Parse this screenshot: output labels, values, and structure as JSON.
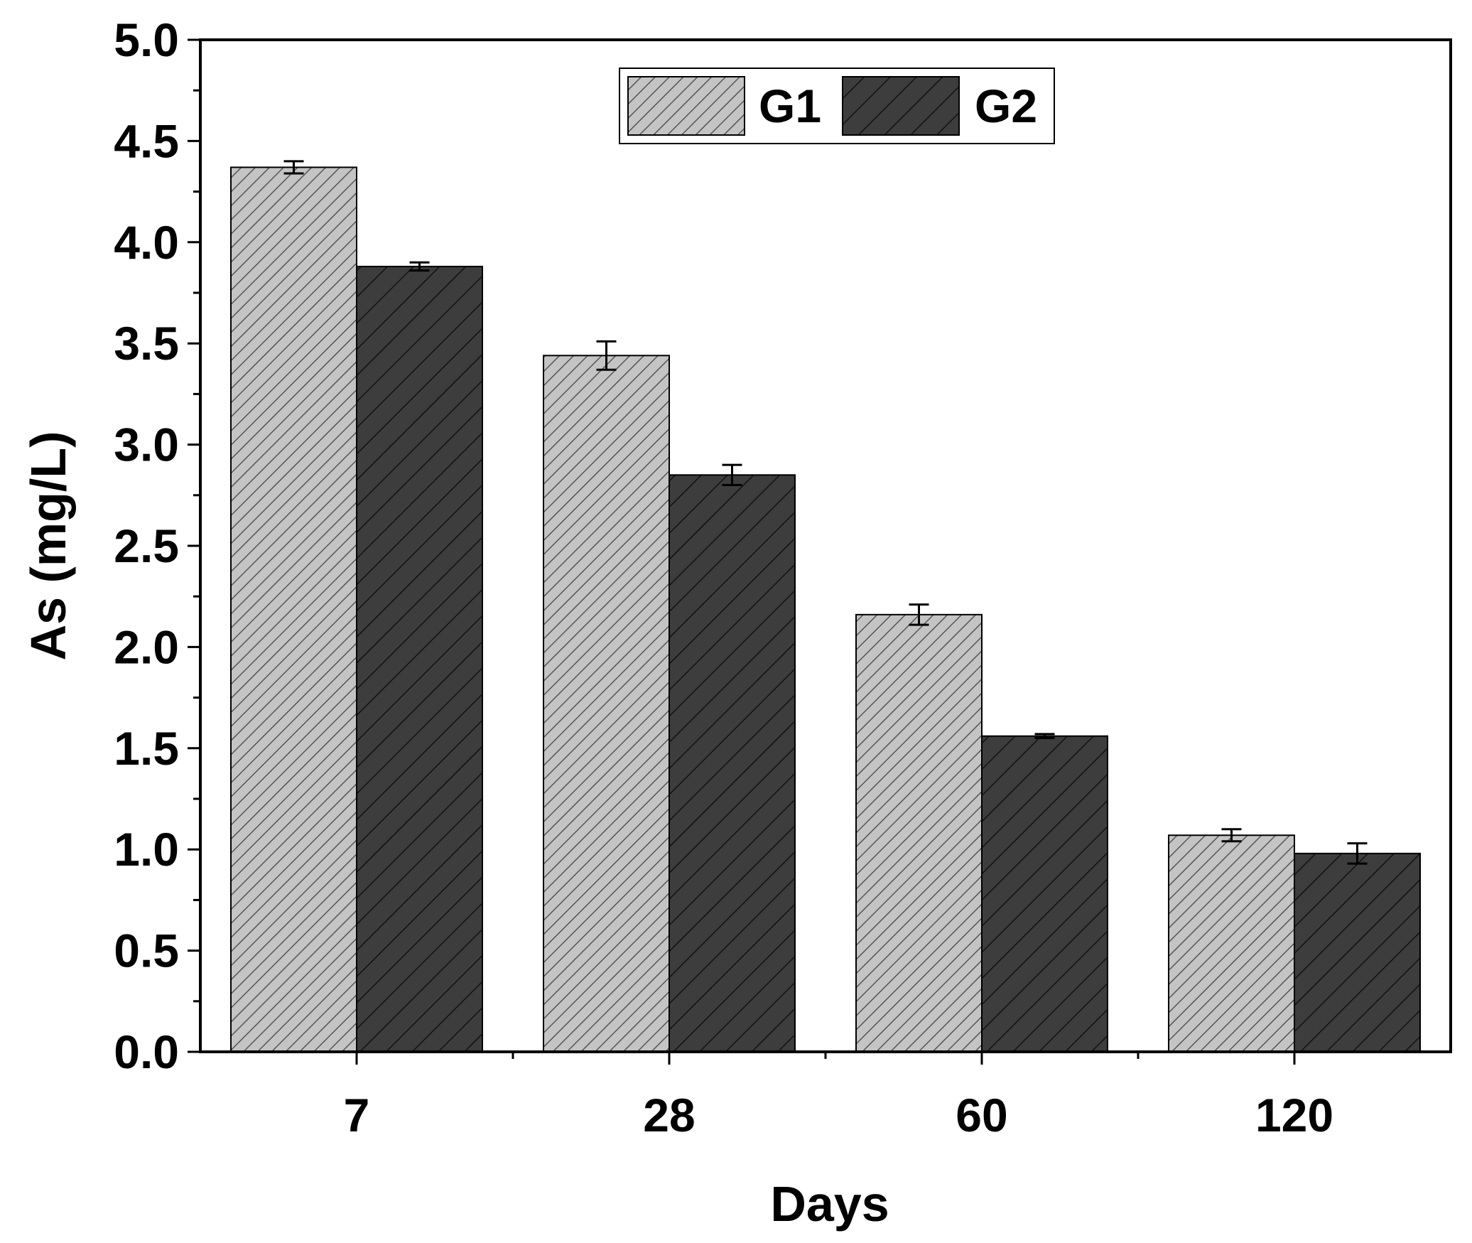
{
  "chart_data": {
    "type": "bar",
    "title": "",
    "xlabel": "Days",
    "ylabel": "As (mg/L)",
    "categories": [
      "7",
      "28",
      "60",
      "120"
    ],
    "series": [
      {
        "name": "G1",
        "values": [
          4.37,
          3.44,
          2.16,
          1.07
        ],
        "errors": [
          0.03,
          0.07,
          0.05,
          0.03
        ],
        "color": "#c4c4c4",
        "hatch": "///"
      },
      {
        "name": "G2",
        "values": [
          3.88,
          2.85,
          1.56,
          0.98
        ],
        "errors": [
          0.02,
          0.05,
          0.01,
          0.05
        ],
        "color": "#3d3d3d",
        "hatch": "//"
      }
    ],
    "ylim": [
      0,
      5.0
    ],
    "yticks": [
      0.0,
      0.5,
      1.0,
      1.5,
      2.0,
      2.5,
      3.0,
      3.5,
      4.0,
      4.5,
      5.0
    ],
    "ytick_labels": [
      "0.0",
      "0.5",
      "1.0",
      "1.5",
      "2.0",
      "2.5",
      "3.0",
      "3.5",
      "4.0",
      "4.5",
      "5.0"
    ],
    "grid": false,
    "legend_position": "top-center"
  }
}
